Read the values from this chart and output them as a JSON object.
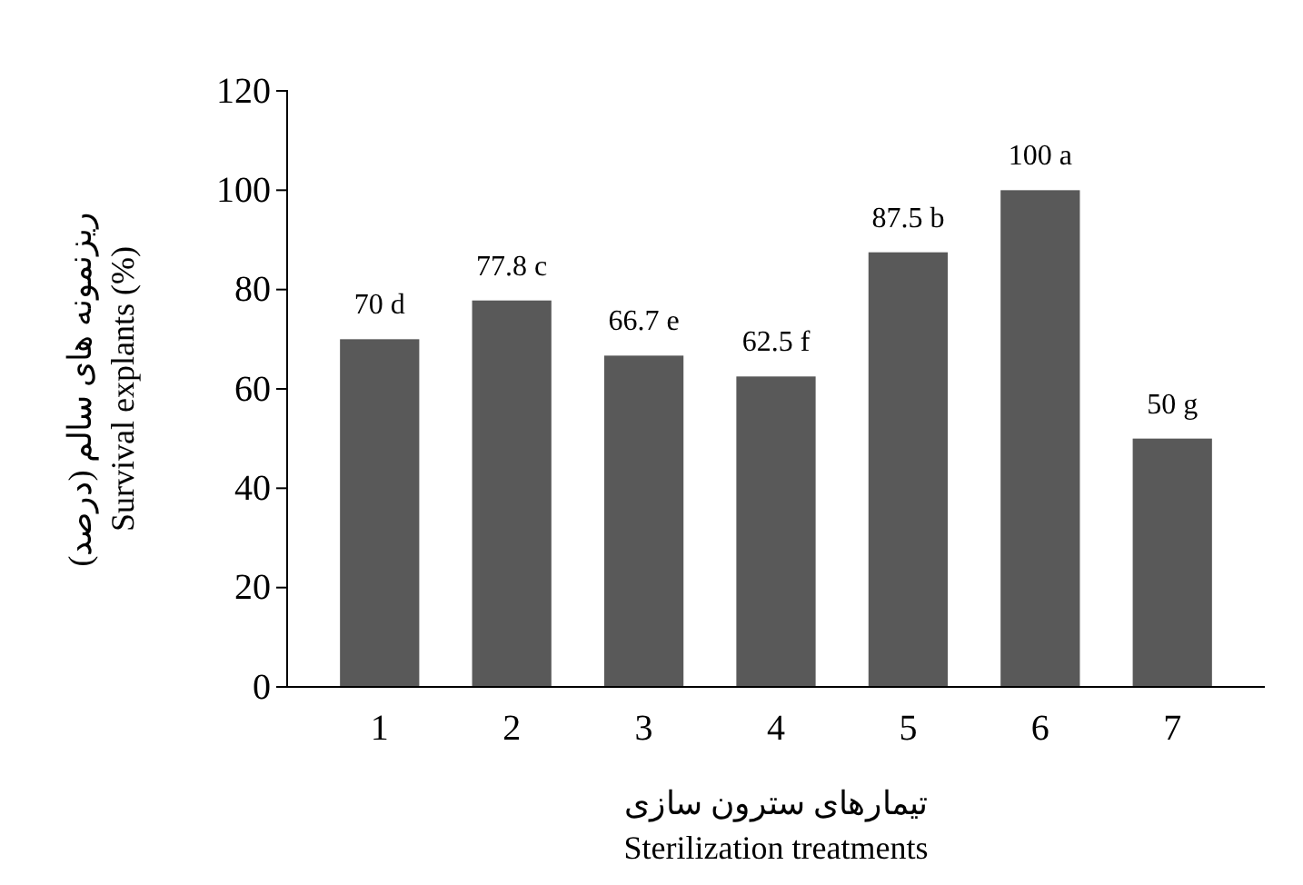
{
  "chart_data": {
    "type": "bar",
    "ylabel": "ریزنمونه های سالم (درصد)\nSurvival explants  (%)",
    "xlabel": "تیمارهای سترون سازی\nSterilization treatments",
    "categories": [
      "1",
      "2",
      "3",
      "4",
      "5",
      "6",
      "7"
    ],
    "values": [
      70,
      77.8,
      66.7,
      62.5,
      87.5,
      100,
      50
    ],
    "value_labels": [
      "70 d",
      "77.8 c",
      "66.7 e",
      "62.5 f",
      "87.5 b",
      "100 a",
      "50 g"
    ],
    "color": "#595959",
    "ylim": [
      0,
      120
    ],
    "yticks": [
      0,
      20,
      40,
      60,
      80,
      100,
      120
    ],
    "grid": false
  }
}
